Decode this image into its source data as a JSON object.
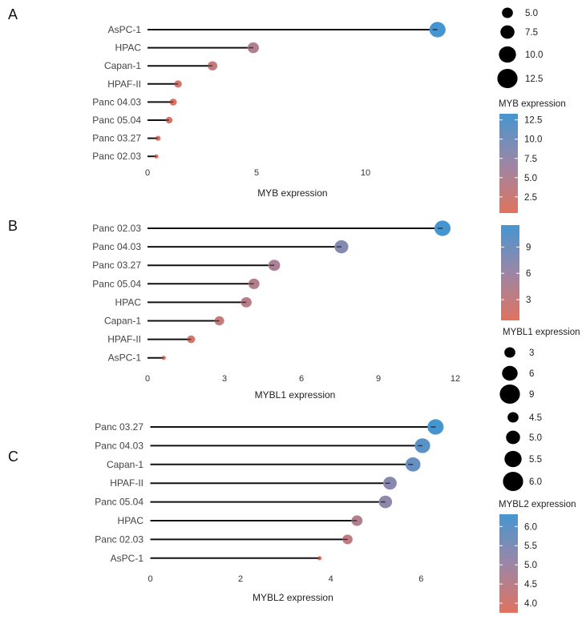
{
  "colors": {
    "low": "#e0735f",
    "mid": "#9c86a6",
    "high": "#4596d0",
    "stem": "#111111",
    "size_key": "#000000"
  },
  "chart_data": [
    {
      "type": "lollipop",
      "panel": "A",
      "xlabel": "MYB expression",
      "xticks": [
        0,
        5,
        10
      ],
      "xticklabels": [
        "0",
        "5",
        "10"
      ],
      "categories": [
        "AsPC-1",
        "HPAC",
        "Capan-1",
        "HPAF-II",
        "Panc 04.03",
        "Panc 05.04",
        "Panc 03.27",
        "Panc 02.03"
      ],
      "values": [
        13.3,
        4.85,
        2.98,
        1.4,
        1.18,
        0.99,
        0.48,
        0.4
      ],
      "size_legend": {
        "values": [
          5.0,
          7.5,
          10.0,
          12.5
        ],
        "labels": [
          "5.0",
          "7.5",
          "10.0",
          "12.5"
        ]
      },
      "color_legend": {
        "title": "MYB expression",
        "ticks": [
          2.5,
          5.0,
          7.5,
          10.0,
          12.5
        ],
        "labels": [
          "2.5",
          "5.0",
          "7.5",
          "10.0",
          "12.5"
        ]
      }
    },
    {
      "type": "lollipop",
      "panel": "B",
      "xlabel": "MYBL1 expression",
      "xticks": [
        0,
        3,
        6,
        9,
        12
      ],
      "xticklabels": [
        "0",
        "3",
        "6",
        "9",
        "12"
      ],
      "categories": [
        "Panc 02.03",
        "Panc 04.03",
        "Panc 03.27",
        "Panc 05.04",
        "HPAC",
        "Capan-1",
        "HPAF-II",
        "AsPC-1"
      ],
      "values": [
        11.5,
        7.56,
        4.94,
        4.15,
        3.85,
        2.8,
        1.7,
        0.63
      ],
      "size_legend": {
        "title": "MYBL1 expression",
        "values": [
          3,
          6,
          9
        ],
        "labels": [
          "3",
          "6",
          "9"
        ]
      },
      "color_legend": {
        "ticks": [
          3,
          6,
          9
        ],
        "labels": [
          "3",
          "6",
          "9"
        ]
      }
    },
    {
      "type": "lollipop",
      "panel": "C",
      "xlabel": "MYBL2 expression",
      "xticks": [
        0,
        2,
        4,
        6
      ],
      "xticklabels": [
        "0",
        "2",
        "4",
        "6"
      ],
      "categories": [
        "Panc 03.27",
        "Panc 04.03",
        "Capan-1",
        "HPAF-II",
        "Panc 05.04",
        "HPAC",
        "Panc 02.03",
        "AsPC-1"
      ],
      "values": [
        6.32,
        6.03,
        5.82,
        5.31,
        5.21,
        4.58,
        4.37,
        3.75
      ],
      "size_legend": {
        "values": [
          4.5,
          5.0,
          5.5,
          6.0
        ],
        "labels": [
          "4.5",
          "5.0",
          "5.5",
          "6.0"
        ]
      },
      "color_legend": {
        "title": "MYBL2 expression",
        "ticks": [
          4.0,
          4.5,
          5.0,
          5.5,
          6.0
        ],
        "labels": [
          "4.0",
          "4.5",
          "5.0",
          "5.5",
          "6.0"
        ]
      }
    }
  ]
}
